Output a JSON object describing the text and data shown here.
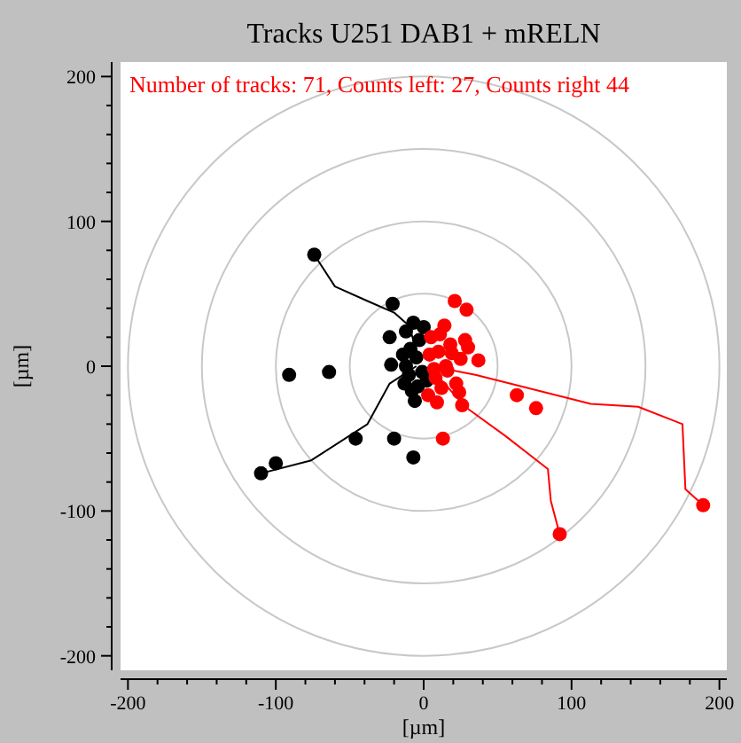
{
  "chart_data": {
    "type": "scatter",
    "title": "Tracks U251 DAB1 + mRELN",
    "xlabel": "[µm]",
    "ylabel": "[µm]",
    "annotations": [
      "Number of tracks: 71, Counts left: 27, Counts right 44"
    ],
    "xlim": [
      -205,
      205
    ],
    "ylim": [
      -210,
      210
    ],
    "xticks": [
      -200,
      {
        "value": -180,
        "label": null
      },
      {
        "value": -160,
        "label": null
      },
      {
        "value": -140,
        "label": null
      },
      {
        "value": -120,
        "label": null
      },
      -100,
      {
        "value": -80,
        "label": null
      },
      {
        "value": -60,
        "label": null
      },
      {
        "value": -40,
        "label": null
      },
      {
        "value": -20,
        "label": null
      },
      0,
      {
        "value": 20,
        "label": null
      },
      {
        "value": 40,
        "label": null
      },
      {
        "value": 60,
        "label": null
      },
      {
        "value": 80,
        "label": null
      },
      100,
      {
        "value": 120,
        "label": null
      },
      {
        "value": 140,
        "label": null
      },
      {
        "value": 160,
        "label": null
      },
      {
        "value": 180,
        "label": null
      },
      200
    ],
    "yticks": [
      -200,
      {
        "value": -180,
        "label": null
      },
      {
        "value": -160,
        "label": null
      },
      {
        "value": -140,
        "label": null
      },
      {
        "value": -120,
        "label": null
      },
      -100,
      {
        "value": -80,
        "label": null
      },
      {
        "value": -60,
        "label": null
      },
      {
        "value": -40,
        "label": null
      },
      {
        "value": -20,
        "label": null
      },
      0,
      {
        "value": 20,
        "label": null
      },
      {
        "value": 40,
        "label": null
      },
      {
        "value": 60,
        "label": null
      },
      {
        "value": 80,
        "label": null
      },
      100,
      {
        "value": 120,
        "label": null
      },
      {
        "value": 140,
        "label": null
      },
      {
        "value": 160,
        "label": null
      },
      {
        "value": 180,
        "label": null
      },
      200
    ],
    "series": [
      {
        "type": "line",
        "color": "#000000",
        "marker": "none",
        "x": [
          -3,
          -10,
          -20,
          -38,
          -60,
          -74
        ],
        "values": [
          5,
          28,
          37,
          45,
          55,
          77
        ]
      },
      {
        "type": "line",
        "color": "#000000",
        "marker": "none",
        "x": [
          -5,
          -23,
          -38,
          -76,
          -110
        ],
        "values": [
          0,
          -12,
          -40,
          -65,
          -74
        ]
      },
      {
        "type": "line",
        "color": "#ff0000",
        "marker": "none",
        "x": [
          5,
          35,
          113,
          145,
          175,
          177,
          189
        ],
        "values": [
          0,
          -6,
          -26,
          -28,
          -40,
          -85,
          -96
        ]
      },
      {
        "type": "line",
        "color": "#ff0000",
        "marker": "none",
        "x": [
          8,
          28,
          55,
          84,
          86,
          92
        ],
        "values": [
          -5,
          -28,
          -48,
          -71,
          -93,
          -116
        ]
      },
      {
        "color": "#000000",
        "marker": "circle",
        "x": [
          -74,
          -21,
          -23,
          -91,
          -64,
          -22,
          -46,
          -20,
          -7,
          -100,
          -110,
          -12,
          -9,
          -12,
          -13,
          -6,
          0,
          -1,
          -5,
          -8,
          2,
          -3,
          -10,
          -4,
          -7,
          -14
        ],
        "values": [
          77,
          43,
          20,
          -6,
          -4,
          1,
          -50,
          -50,
          -63,
          -67,
          -74,
          24,
          12,
          0,
          -12,
          -24,
          27,
          -4,
          6,
          -17,
          -10,
          18,
          -6,
          -14,
          30,
          8
        ]
      },
      {
        "color": "#ff0000",
        "marker": "circle",
        "x": [
          21,
          29,
          30,
          37,
          63,
          76,
          26,
          13,
          92,
          189,
          5,
          10,
          15,
          8,
          12,
          25,
          3,
          18,
          14,
          22,
          9,
          28,
          4,
          16,
          11,
          24,
          7,
          19
        ],
        "values": [
          45,
          39,
          13,
          4,
          -20,
          -29,
          -27,
          -50,
          -116,
          -96,
          20,
          10,
          0,
          -8,
          -15,
          5,
          -20,
          15,
          28,
          -12,
          -25,
          18,
          8,
          -3,
          22,
          -18,
          -2,
          9
        ]
      }
    ]
  }
}
